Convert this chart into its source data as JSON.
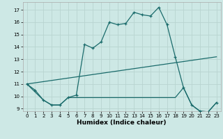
{
  "xlabel": "Humidex (Indice chaleur)",
  "xlim": [
    -0.5,
    23.5
  ],
  "ylim": [
    8.8,
    17.6
  ],
  "yticks": [
    9,
    10,
    11,
    12,
    13,
    14,
    15,
    16,
    17
  ],
  "xticks": [
    0,
    1,
    2,
    3,
    4,
    5,
    6,
    7,
    8,
    9,
    10,
    11,
    12,
    13,
    14,
    15,
    16,
    17,
    18,
    19,
    20,
    21,
    22,
    23
  ],
  "bg_color": "#cde8e5",
  "grid_color": "#b8d4d0",
  "line_color": "#1a6b6b",
  "line1_x": [
    0,
    1,
    2,
    3,
    4,
    5,
    6,
    7,
    8,
    9,
    10,
    11,
    12,
    13,
    14,
    15,
    16,
    17,
    18,
    19,
    20,
    21,
    22,
    23
  ],
  "line1_y": [
    11.0,
    10.5,
    9.7,
    9.3,
    9.3,
    9.9,
    10.1,
    14.2,
    13.9,
    14.4,
    16.0,
    15.8,
    15.9,
    16.8,
    16.6,
    16.5,
    17.2,
    15.8,
    13.2,
    10.7,
    9.3,
    8.8,
    8.75,
    9.5
  ],
  "line2_x": [
    0,
    23
  ],
  "line2_y": [
    11.0,
    13.2
  ],
  "line3_x": [
    0,
    2,
    3,
    4,
    5,
    6,
    7,
    8,
    9,
    10,
    11,
    12,
    13,
    14,
    15,
    16,
    17,
    18,
    19,
    20,
    21,
    22,
    23
  ],
  "line3_y": [
    11.0,
    9.7,
    9.3,
    9.3,
    9.9,
    9.9,
    9.9,
    9.9,
    9.9,
    9.9,
    9.9,
    9.9,
    9.9,
    9.9,
    9.9,
    9.9,
    9.9,
    9.9,
    10.7,
    9.3,
    8.8,
    8.75,
    9.5
  ]
}
